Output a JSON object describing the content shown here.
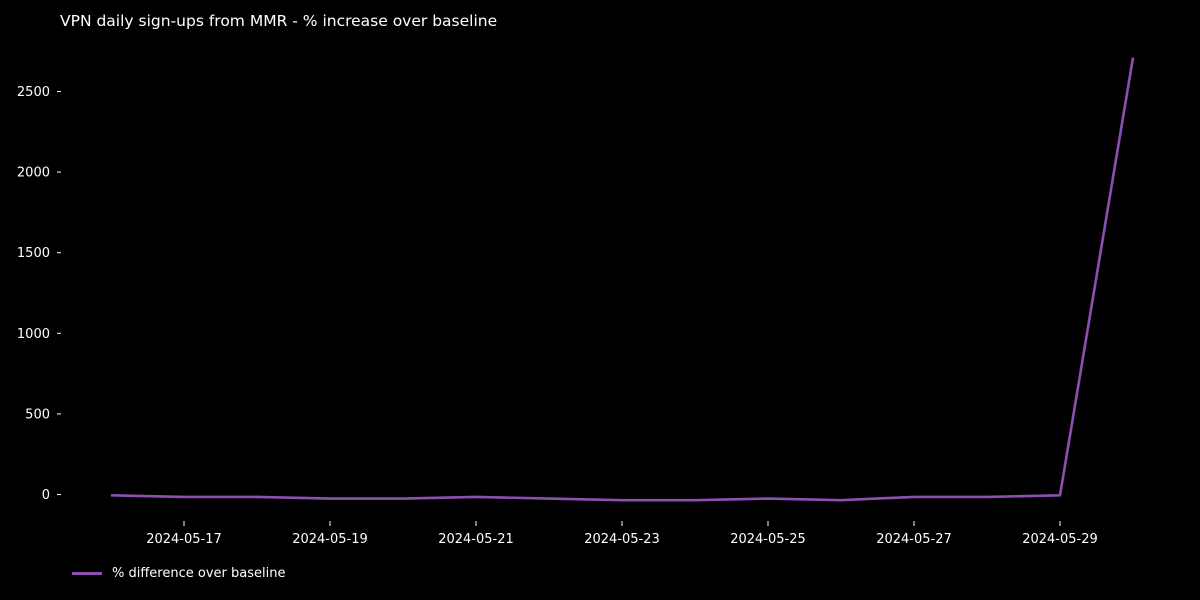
{
  "chart_data": {
    "type": "line",
    "title": "VPN daily sign-ups from MMR - % increase over baseline",
    "xlabel": "",
    "ylabel": "",
    "x": [
      "2024-05-16",
      "2024-05-17",
      "2024-05-18",
      "2024-05-19",
      "2024-05-20",
      "2024-05-21",
      "2024-05-22",
      "2024-05-23",
      "2024-05-24",
      "2024-05-25",
      "2024-05-26",
      "2024-05-27",
      "2024-05-28",
      "2024-05-29",
      "2024-05-30"
    ],
    "x_tick_labels": [
      "2024-05-17",
      "2024-05-19",
      "2024-05-21",
      "2024-05-23",
      "2024-05-25",
      "2024-05-27",
      "2024-05-29"
    ],
    "y_ticks": [
      0,
      500,
      1000,
      1500,
      2000,
      2500
    ],
    "ylim": [
      -150,
      2750
    ],
    "series": [
      {
        "name": "% difference over baseline",
        "color": "#8e4fb3",
        "values": [
          -5,
          -15,
          -15,
          -25,
          -25,
          -15,
          -25,
          -35,
          -35,
          -25,
          -35,
          -15,
          -15,
          -5,
          2710
        ]
      }
    ],
    "grid": false,
    "legend": "bottom-left",
    "background": "#000000",
    "text_color": "#ffffff"
  }
}
